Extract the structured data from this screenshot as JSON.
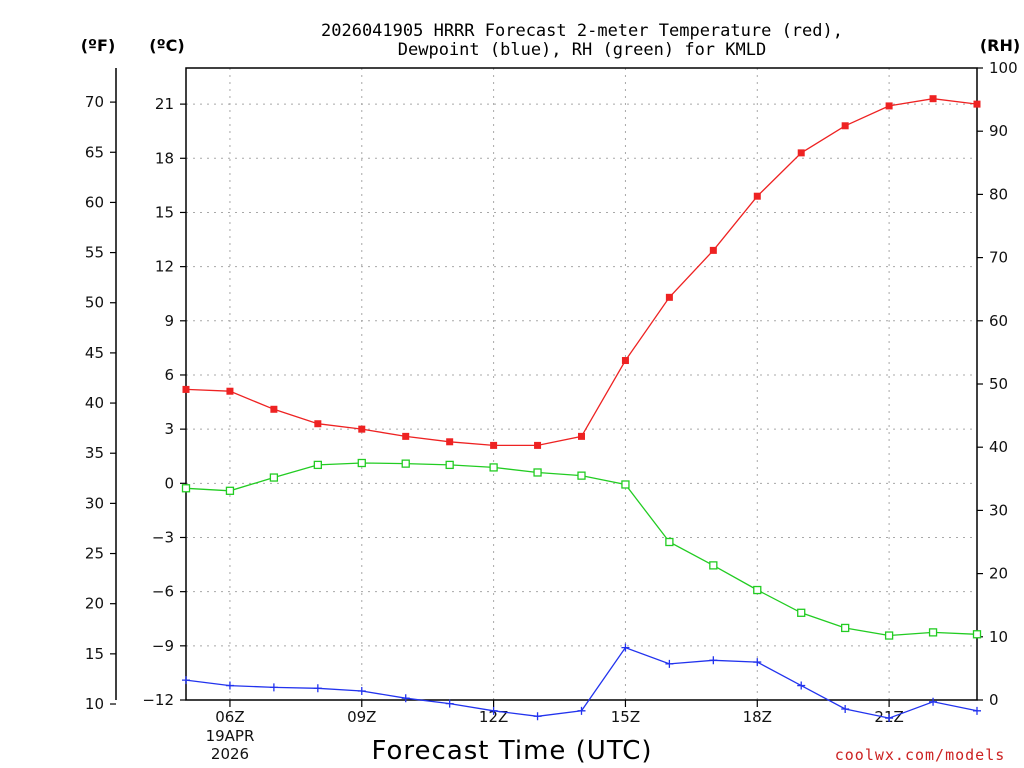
{
  "chart_data": {
    "type": "line",
    "title_lines": [
      "2026041905 HRRR Forecast 2-meter Temperature (red),",
      "Dewpoint (blue), RH (green) for KMLD"
    ],
    "xlabel": "Forecast Time (UTC)",
    "x": [
      5,
      6,
      7,
      8,
      9,
      10,
      11,
      12,
      13,
      14,
      15,
      16,
      17,
      18,
      19,
      20,
      21,
      22,
      23
    ],
    "xlim": [
      5,
      23
    ],
    "x_tick_values": [
      6,
      9,
      12,
      15,
      18,
      21
    ],
    "x_tick_labels": [
      "06Z",
      "09Z",
      "12Z",
      "15Z",
      "18Z",
      "21Z"
    ],
    "date_label": [
      "19APR",
      "2026"
    ],
    "y_axes": {
      "fahrenheit": {
        "unit_label": "(ºF)",
        "ticks": [
          "10",
          "15",
          "20",
          "25",
          "30",
          "35",
          "40",
          "45",
          "50",
          "55",
          "60",
          "65",
          "70"
        ],
        "range": [
          10.4,
          73.4
        ]
      },
      "celsius": {
        "unit_label": "(ºC)",
        "ticks": [
          "−12",
          "−9",
          "−6",
          "−3",
          "0",
          "3",
          "6",
          "9",
          "12",
          "15",
          "18",
          "21"
        ],
        "range": [
          -12,
          23
        ]
      },
      "rh": {
        "unit_label": "(RH)",
        "ticks": [
          "0",
          "10",
          "20",
          "30",
          "40",
          "50",
          "60",
          "70",
          "80",
          "90",
          "100"
        ],
        "range": [
          0,
          100
        ]
      }
    },
    "series": [
      {
        "name": "Temperature",
        "axis": "celsius",
        "color": "#ee2222",
        "marker": "filled-square",
        "values": [
          5.2,
          5.1,
          4.1,
          3.3,
          3.0,
          2.6,
          2.3,
          2.1,
          2.1,
          2.6,
          6.8,
          10.3,
          12.9,
          15.9,
          18.3,
          19.8,
          20.9,
          21.3,
          21.0
        ]
      },
      {
        "name": "Dewpoint",
        "axis": "celsius",
        "color": "#2233ee",
        "marker": "plus",
        "values": [
          -10.9,
          -11.2,
          -11.3,
          -11.35,
          -11.5,
          -11.9,
          -12.2,
          -12.6,
          -12.9,
          -12.6,
          -9.1,
          -10.0,
          -9.8,
          -9.9,
          -11.2,
          -12.5,
          -13.0,
          -12.1,
          -12.6
        ]
      },
      {
        "name": "RH",
        "axis": "rh",
        "color": "#22cc22",
        "marker": "open-square",
        "values": [
          33.5,
          33.1,
          35.2,
          37.2,
          37.5,
          37.4,
          37.2,
          36.8,
          36.0,
          35.5,
          34.1,
          25.0,
          21.3,
          17.4,
          13.8,
          11.4,
          10.2,
          10.7,
          10.4
        ]
      }
    ]
  },
  "credit": "coolwx.com/models"
}
